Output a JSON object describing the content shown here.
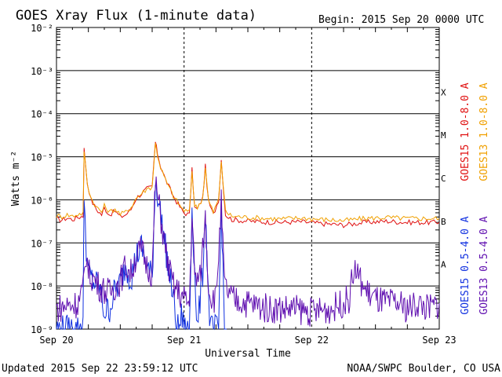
{
  "header": {
    "title": "GOES Xray Flux (1-minute data)",
    "begin": "Begin:  2015 Sep 20 0000 UTC"
  },
  "footer": {
    "updated": "Updated 2015 Sep 22 23:59:12 UTC",
    "credit": "NOAA/SWPC Boulder, CO USA"
  },
  "chart_data": {
    "type": "line",
    "title": "GOES Xray Flux (1-minute data)",
    "xlabel": "Universal Time",
    "ylabel": "Watts m⁻²",
    "yscale": "log",
    "ylim": [
      1e-09,
      0.01
    ],
    "xlim": [
      0,
      72
    ],
    "x_unit": "hours since 2015 Sep 20 0000 UTC",
    "x_ticks": [
      {
        "x": 0,
        "label": "Sep 20"
      },
      {
        "x": 24,
        "label": "Sep 21"
      },
      {
        "x": 48,
        "label": "Sep 22"
      },
      {
        "x": 72,
        "label": "Sep 23"
      }
    ],
    "y_ticks": [
      {
        "exp": -2,
        "label": "10⁻²"
      },
      {
        "exp": -3,
        "label": "10⁻³"
      },
      {
        "exp": -4,
        "label": "10⁻⁴"
      },
      {
        "exp": -5,
        "label": "10⁻⁵"
      },
      {
        "exp": -6,
        "label": "10⁻⁶"
      },
      {
        "exp": -7,
        "label": "10⁻⁷"
      },
      {
        "exp": -8,
        "label": "10⁻⁸"
      },
      {
        "exp": -9,
        "label": "10⁻⁹"
      }
    ],
    "flare_classes": [
      {
        "label": "X",
        "exp": -3.5
      },
      {
        "label": "M",
        "exp": -4.5
      },
      {
        "label": "C",
        "exp": -5.5
      },
      {
        "label": "B",
        "exp": -6.5
      },
      {
        "label": "A",
        "exp": -7.5
      }
    ],
    "grid": true,
    "legend_placement": "right",
    "series": [
      {
        "name": "GOES15 1.0-8.0 A",
        "color": "#e01010",
        "x": [
          0,
          1,
          2,
          3,
          4,
          5,
          5.2,
          5.8,
          6.5,
          7.5,
          8.5,
          9,
          10,
          11,
          12,
          13,
          14,
          15,
          16,
          17,
          18,
          18.6,
          19,
          19.6,
          20.5,
          22,
          23.5,
          24,
          25,
          25.5,
          26,
          26.5,
          27.5,
          28,
          28.6,
          29.5,
          30.5,
          31,
          31.8,
          33,
          35,
          38,
          42,
          46,
          50,
          54,
          58,
          62,
          66,
          70,
          72
        ],
        "values": [
          3.6e-07,
          3.4e-07,
          3.8e-07,
          3.5e-07,
          3.9e-07,
          4.2e-07,
          1.5e-05,
          2.5e-06,
          1e-06,
          6e-07,
          4.5e-07,
          6.5e-07,
          4.5e-07,
          5.5e-07,
          4e-07,
          4.5e-07,
          6e-07,
          1.1e-06,
          1.4e-06,
          1.8e-06,
          2e-06,
          2.2e-05,
          1.2e-05,
          6e-06,
          3e-06,
          1.2e-06,
          6e-07,
          5e-07,
          4.5e-07,
          5e-06,
          6.5e-07,
          6e-07,
          1.1e-06,
          6e-06,
          9e-07,
          4.5e-07,
          1e-06,
          8.5e-06,
          4.5e-07,
          3.5e-07,
          3.3e-07,
          3.1e-07,
          3e-07,
          3.1e-07,
          2.8e-07,
          2.6e-07,
          3e-07,
          3.2e-07,
          3e-07,
          3e-07,
          3e-07
        ]
      },
      {
        "name": "GOES13 1.0-8.0 A",
        "color": "#f0a000",
        "x": [
          0,
          1,
          2,
          3,
          4,
          5,
          5.2,
          5.8,
          6.5,
          7.5,
          8.5,
          9,
          10,
          11,
          12,
          13,
          14,
          15,
          16,
          17,
          18,
          18.6,
          19,
          19.6,
          20.5,
          22,
          23.5,
          24,
          25,
          25.5,
          26,
          26.5,
          27.5,
          28,
          28.6,
          29.5,
          30.5,
          31,
          31.8,
          33,
          35,
          38,
          42,
          46,
          50,
          54,
          58,
          62,
          66,
          70,
          72
        ],
        "values": [
          4.3e-07,
          4.1e-07,
          4.5e-07,
          4.2e-07,
          4.6e-07,
          4.9e-07,
          1.4e-05,
          2.4e-06,
          1.1e-06,
          6.8e-07,
          5.2e-07,
          7.2e-07,
          5.2e-07,
          6.2e-07,
          4.6e-07,
          5.2e-07,
          6.7e-07,
          1.1e-06,
          1.4e-06,
          1.8e-06,
          2e-06,
          2e-05,
          1.1e-05,
          5.6e-06,
          2.9e-06,
          1.2e-06,
          6.6e-07,
          5.7e-07,
          5.2e-07,
          4.6e-06,
          7.2e-07,
          6.7e-07,
          1.1e-06,
          5.6e-06,
          9.6e-07,
          5.2e-07,
          1e-06,
          8e-06,
          5.2e-07,
          4.2e-07,
          4e-07,
          3.8e-07,
          3.6e-07,
          3.8e-07,
          3.5e-07,
          3.3e-07,
          3.7e-07,
          3.9e-07,
          3.7e-07,
          3.7e-07,
          3.7e-07
        ]
      },
      {
        "name": "GOES15 0.5-4.0 A",
        "color": "#1030e0",
        "x": [
          0,
          1,
          2,
          3,
          4,
          5,
          5.2,
          5.6,
          6,
          7,
          8,
          9,
          10,
          11,
          12,
          13,
          14,
          15,
          16,
          17,
          18,
          18.6,
          19.2,
          20,
          21,
          22,
          22.5,
          23,
          23.5,
          24,
          25,
          25.5,
          26,
          26.5,
          27.5,
          28,
          28.6,
          29,
          30.5,
          31,
          31.6,
          32
        ],
        "values": [
          1e-09,
          1e-09,
          1e-09,
          1e-09,
          1e-09,
          1.5e-09,
          1.5e-06,
          8e-08,
          2e-08,
          1.2e-08,
          1e-08,
          2.5e-09,
          3e-09,
          8e-09,
          1.2e-08,
          3e-08,
          1.5e-08,
          5e-08,
          8e-08,
          3e-08,
          1.5e-08,
          3e-06,
          1e-06,
          2e-07,
          3e-08,
          5e-09,
          1e-09,
          1e-09,
          2e-09,
          1e-09,
          1e-09,
          8e-07,
          2e-08,
          1e-09,
          2e-08,
          6e-07,
          5e-09,
          1e-09,
          1e-09,
          1e-06,
          1e-09,
          1e-09
        ]
      },
      {
        "name": "GOES13 0.5-4.0 A",
        "color": "#6010b0",
        "x": [
          0,
          2,
          4,
          5,
          5.6,
          6,
          7,
          8,
          9,
          10,
          11,
          12,
          13,
          14,
          15,
          16,
          17,
          18,
          18.6,
          19.2,
          20,
          21,
          22,
          23,
          24,
          25,
          25.5,
          26,
          27,
          28,
          28.6,
          29,
          30,
          31,
          31.6,
          33,
          36,
          40,
          44,
          48,
          52,
          55,
          56,
          57,
          58,
          60,
          62,
          64,
          66,
          68,
          70,
          72
        ],
        "values": [
          3e-09,
          3.5e-09,
          4e-09,
          8e-09,
          6e-08,
          2e-08,
          1.5e-08,
          1e-08,
          8e-09,
          7e-09,
          1e-08,
          1.3e-08,
          3e-08,
          2e-08,
          5e-08,
          7e-08,
          3e-08,
          2e-08,
          2.5e-06,
          9e-07,
          1.8e-07,
          3e-08,
          1e-08,
          7e-09,
          5e-09,
          4e-09,
          5e-07,
          1.5e-08,
          1.5e-08,
          4e-07,
          1e-08,
          6e-09,
          5e-09,
          8e-07,
          1e-08,
          5e-09,
          4e-09,
          3e-09,
          3e-09,
          2.5e-09,
          3e-09,
          5e-09,
          2.5e-08,
          1.5e-08,
          8e-09,
          5e-09,
          4e-09,
          4e-09,
          3e-09,
          4e-09,
          3e-09,
          4e-09
        ]
      }
    ]
  }
}
